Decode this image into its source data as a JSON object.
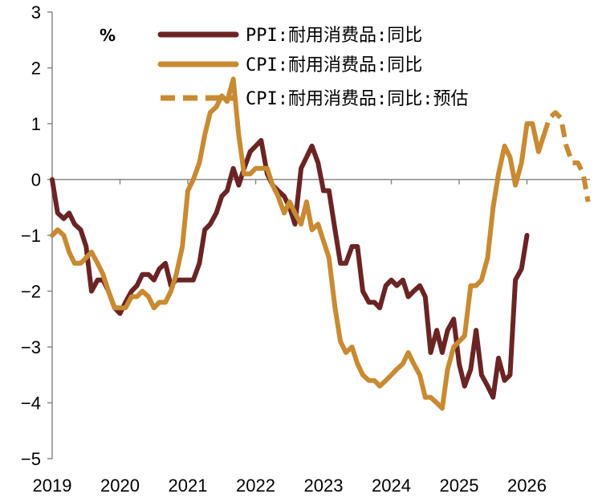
{
  "chart_data": {
    "type": "line",
    "unit_label": "%",
    "xlim": [
      2019,
      2026.9
    ],
    "ylim": [
      -5,
      3
    ],
    "x_ticks": [
      2019,
      2020,
      2021,
      2022,
      2023,
      2024,
      2025,
      2026
    ],
    "y_ticks": [
      3,
      2,
      1,
      0,
      -1,
      -2,
      -3,
      -4,
      -5
    ],
    "y_tick_labels": [
      "3",
      "2",
      "1",
      "0",
      "−1",
      "−2",
      "−3",
      "−4",
      "−5"
    ],
    "x_tick_labels": [
      "2019",
      "2020",
      "2021",
      "2022",
      "2023",
      "2024",
      "2025",
      "2026"
    ],
    "legend_position": "top-right",
    "colors": {
      "ppi": "#6b2424",
      "cpi": "#c88a32",
      "cpi_forecast": "#c88a32"
    },
    "series": [
      {
        "name": "PPI:耐用消费品:同比",
        "style": "solid",
        "points": [
          [
            2019.0,
            0.0
          ],
          [
            2019.08,
            -0.6
          ],
          [
            2019.17,
            -0.7
          ],
          [
            2019.25,
            -0.6
          ],
          [
            2019.33,
            -0.8
          ],
          [
            2019.42,
            -0.9
          ],
          [
            2019.5,
            -1.2
          ],
          [
            2019.58,
            -2.0
          ],
          [
            2019.67,
            -1.8
          ],
          [
            2019.75,
            -1.8
          ],
          [
            2019.83,
            -2.0
          ],
          [
            2019.92,
            -2.3
          ],
          [
            2020.0,
            -2.4
          ],
          [
            2020.08,
            -2.2
          ],
          [
            2020.17,
            -2.0
          ],
          [
            2020.25,
            -1.9
          ],
          [
            2020.33,
            -1.7
          ],
          [
            2020.42,
            -1.7
          ],
          [
            2020.5,
            -1.8
          ],
          [
            2020.58,
            -1.6
          ],
          [
            2020.67,
            -1.5
          ],
          [
            2020.75,
            -1.9
          ],
          [
            2020.83,
            -1.8
          ],
          [
            2020.92,
            -1.8
          ],
          [
            2021.0,
            -1.8
          ],
          [
            2021.08,
            -1.8
          ],
          [
            2021.17,
            -1.5
          ],
          [
            2021.25,
            -0.9
          ],
          [
            2021.33,
            -0.8
          ],
          [
            2021.42,
            -0.6
          ],
          [
            2021.5,
            -0.3
          ],
          [
            2021.58,
            -0.2
          ],
          [
            2021.67,
            0.2
          ],
          [
            2021.75,
            -0.1
          ],
          [
            2021.83,
            0.2
          ],
          [
            2021.92,
            0.5
          ],
          [
            2022.0,
            0.6
          ],
          [
            2022.08,
            0.7
          ],
          [
            2022.17,
            0.1
          ],
          [
            2022.25,
            -0.1
          ],
          [
            2022.33,
            -0.2
          ],
          [
            2022.42,
            -0.3
          ],
          [
            2022.5,
            -0.5
          ],
          [
            2022.58,
            -0.8
          ],
          [
            2022.67,
            0.2
          ],
          [
            2022.75,
            0.4
          ],
          [
            2022.83,
            0.6
          ],
          [
            2022.92,
            0.3
          ],
          [
            2023.0,
            -0.2
          ],
          [
            2023.08,
            -0.2
          ],
          [
            2023.17,
            -0.9
          ],
          [
            2023.25,
            -1.5
          ],
          [
            2023.33,
            -1.5
          ],
          [
            2023.42,
            -1.2
          ],
          [
            2023.5,
            -1.2
          ],
          [
            2023.58,
            -2.0
          ],
          [
            2023.67,
            -2.2
          ],
          [
            2023.75,
            -2.2
          ],
          [
            2023.83,
            -2.3
          ],
          [
            2023.92,
            -1.9
          ],
          [
            2024.0,
            -1.8
          ],
          [
            2024.08,
            -1.9
          ],
          [
            2024.17,
            -1.8
          ],
          [
            2024.25,
            -2.1
          ],
          [
            2024.33,
            -2.0
          ],
          [
            2024.42,
            -1.9
          ],
          [
            2024.5,
            -2.1
          ],
          [
            2024.58,
            -3.1
          ],
          [
            2024.67,
            -2.7
          ],
          [
            2024.75,
            -3.1
          ],
          [
            2024.83,
            -2.7
          ],
          [
            2024.92,
            -2.5
          ],
          [
            2025.0,
            -3.3
          ],
          [
            2025.08,
            -3.7
          ],
          [
            2025.17,
            -3.4
          ],
          [
            2025.25,
            -2.7
          ],
          [
            2025.33,
            -3.5
          ],
          [
            2025.42,
            -3.7
          ],
          [
            2025.5,
            -3.9
          ],
          [
            2025.58,
            -3.2
          ],
          [
            2025.67,
            -3.6
          ],
          [
            2025.75,
            -3.5
          ],
          [
            2025.83,
            -1.8
          ],
          [
            2025.92,
            -1.6
          ],
          [
            2026.0,
            -1.0
          ]
        ]
      },
      {
        "name": "CPI:耐用消费品:同比",
        "style": "solid",
        "points": [
          [
            2019.0,
            -1.0
          ],
          [
            2019.08,
            -0.9
          ],
          [
            2019.17,
            -1.0
          ],
          [
            2019.25,
            -1.3
          ],
          [
            2019.33,
            -1.5
          ],
          [
            2019.42,
            -1.5
          ],
          [
            2019.5,
            -1.4
          ],
          [
            2019.58,
            -1.3
          ],
          [
            2019.67,
            -1.5
          ],
          [
            2019.75,
            -1.7
          ],
          [
            2019.83,
            -2.0
          ],
          [
            2019.92,
            -2.3
          ],
          [
            2020.0,
            -2.3
          ],
          [
            2020.08,
            -2.3
          ],
          [
            2020.17,
            -2.1
          ],
          [
            2020.25,
            -2.1
          ],
          [
            2020.33,
            -2.0
          ],
          [
            2020.42,
            -2.1
          ],
          [
            2020.5,
            -2.3
          ],
          [
            2020.58,
            -2.2
          ],
          [
            2020.67,
            -2.2
          ],
          [
            2020.75,
            -2.0
          ],
          [
            2020.83,
            -1.7
          ],
          [
            2020.92,
            -1.2
          ],
          [
            2021.0,
            -0.2
          ],
          [
            2021.08,
            0.0
          ],
          [
            2021.17,
            0.3
          ],
          [
            2021.25,
            0.8
          ],
          [
            2021.33,
            1.2
          ],
          [
            2021.42,
            1.3
          ],
          [
            2021.5,
            1.5
          ],
          [
            2021.58,
            1.4
          ],
          [
            2021.67,
            1.8
          ],
          [
            2021.75,
            0.8
          ],
          [
            2021.83,
            0.1
          ],
          [
            2021.92,
            0.1
          ],
          [
            2022.0,
            0.2
          ],
          [
            2022.08,
            0.2
          ],
          [
            2022.17,
            0.2
          ],
          [
            2022.25,
            -0.1
          ],
          [
            2022.33,
            -0.3
          ],
          [
            2022.42,
            -0.6
          ],
          [
            2022.5,
            -0.4
          ],
          [
            2022.58,
            -0.6
          ],
          [
            2022.67,
            -0.8
          ],
          [
            2022.75,
            -0.4
          ],
          [
            2022.83,
            -0.9
          ],
          [
            2022.92,
            -0.8
          ],
          [
            2023.0,
            -1.1
          ],
          [
            2023.08,
            -1.4
          ],
          [
            2023.17,
            -2.3
          ],
          [
            2023.25,
            -2.9
          ],
          [
            2023.33,
            -3.1
          ],
          [
            2023.42,
            -3.0
          ],
          [
            2023.5,
            -3.3
          ],
          [
            2023.58,
            -3.5
          ],
          [
            2023.67,
            -3.6
          ],
          [
            2023.75,
            -3.6
          ],
          [
            2023.83,
            -3.7
          ],
          [
            2023.92,
            -3.6
          ],
          [
            2024.0,
            -3.5
          ],
          [
            2024.08,
            -3.4
          ],
          [
            2024.17,
            -3.3
          ],
          [
            2024.25,
            -3.1
          ],
          [
            2024.33,
            -3.3
          ],
          [
            2024.42,
            -3.5
          ],
          [
            2024.5,
            -3.9
          ],
          [
            2024.58,
            -3.9
          ],
          [
            2024.67,
            -4.0
          ],
          [
            2024.75,
            -4.1
          ],
          [
            2024.83,
            -3.4
          ],
          [
            2024.92,
            -3.0
          ],
          [
            2025.0,
            -2.9
          ],
          [
            2025.08,
            -2.8
          ],
          [
            2025.17,
            -1.9
          ],
          [
            2025.25,
            -1.9
          ],
          [
            2025.33,
            -1.8
          ],
          [
            2025.42,
            -1.4
          ],
          [
            2025.5,
            -0.5
          ],
          [
            2025.58,
            0.1
          ],
          [
            2025.67,
            0.6
          ],
          [
            2025.75,
            0.4
          ],
          [
            2025.83,
            -0.1
          ],
          [
            2025.92,
            0.3
          ],
          [
            2026.0,
            1.0
          ],
          [
            2026.08,
            1.0
          ],
          [
            2026.17,
            0.5
          ],
          [
            2026.25,
            0.8
          ]
        ]
      },
      {
        "name": "CPI:耐用消费品:同比:预估",
        "style": "dashed",
        "points": [
          [
            2026.25,
            0.8
          ],
          [
            2026.33,
            1.1
          ],
          [
            2026.42,
            1.2
          ],
          [
            2026.5,
            1.1
          ],
          [
            2026.58,
            0.6
          ],
          [
            2026.67,
            0.3
          ],
          [
            2026.75,
            0.3
          ],
          [
            2026.83,
            0.1
          ],
          [
            2026.9,
            -0.4
          ]
        ]
      }
    ]
  }
}
